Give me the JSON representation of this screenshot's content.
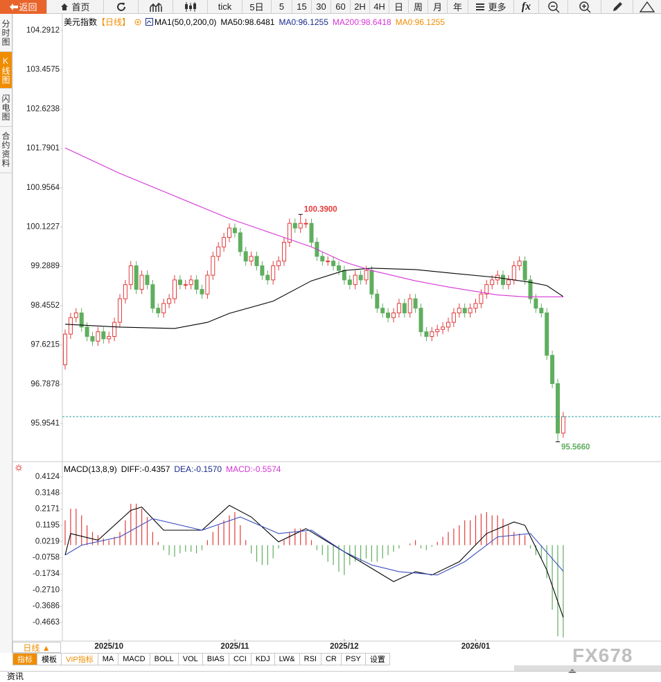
{
  "toolbar": {
    "back": "返回",
    "home": "首页",
    "buttons": [
      "tick",
      "5日",
      "5",
      "15",
      "30",
      "60",
      "2H",
      "4H",
      "日",
      "周",
      "月",
      "年"
    ],
    "more": "更多",
    "fx": "fx"
  },
  "side_tabs": [
    "分时图",
    "K线图",
    "闪电图",
    "合约资料"
  ],
  "chart_data": [
    {
      "type": "candlestick",
      "title": "美元指数",
      "period": "【日线】",
      "indicator": "MA1(50,0,200,0)",
      "legend": [
        {
          "text": "MA50:98.6481",
          "color": "#000000"
        },
        {
          "text": "MA0:96.1255",
          "color": "#1a2a8a"
        },
        {
          "text": "MA200:98.6418",
          "color": "#d633d6"
        },
        {
          "text": "MA0:96.1255",
          "color": "#f08c00"
        }
      ],
      "up_color": "#e23a3a",
      "down_color": "#5fae5f",
      "last_price_color": "#2aa1a1",
      "open": [
        97.2,
        97.85,
        98.2,
        98.3,
        98.0,
        97.8,
        97.7,
        97.9,
        97.75,
        97.8,
        98.1,
        98.6,
        98.9,
        99.3,
        98.8,
        99.1,
        98.9,
        98.4,
        98.3,
        98.5,
        98.6,
        99.0,
        98.9,
        98.9,
        99.0,
        98.8,
        98.7,
        99.1,
        99.5,
        99.7,
        99.9,
        100.1,
        100.0,
        99.6,
        99.4,
        99.5,
        99.3,
        99.1,
        99.0,
        99.3,
        99.4,
        99.8,
        100.2,
        100.1,
        100.2,
        100.2,
        99.8,
        99.5,
        99.4,
        99.4,
        99.3,
        99.2,
        99.0,
        98.9,
        99.1,
        99.0,
        99.2,
        98.7,
        98.4,
        98.3,
        98.2,
        98.3,
        98.5,
        98.3,
        98.6,
        98.4,
        97.9,
        97.8,
        97.9,
        97.95,
        98.0,
        98.1,
        98.3,
        98.4,
        98.3,
        98.4,
        98.5,
        98.7,
        98.9,
        99.0,
        99.1,
        98.9,
        99.0,
        99.3,
        99.4,
        99.0,
        98.6,
        98.4,
        98.3,
        97.4,
        96.8,
        95.75
      ],
      "high": [
        97.95,
        98.3,
        98.4,
        98.4,
        98.1,
        97.9,
        98.0,
        98.0,
        97.9,
        98.2,
        98.7,
        99.0,
        99.4,
        99.4,
        99.2,
        99.2,
        99.0,
        98.5,
        98.6,
        98.7,
        99.1,
        99.1,
        99.0,
        99.1,
        99.1,
        98.9,
        99.2,
        99.6,
        99.8,
        100.0,
        100.2,
        100.2,
        100.1,
        99.7,
        99.6,
        99.6,
        99.4,
        99.2,
        99.4,
        99.5,
        99.9,
        100.3,
        100.3,
        100.39,
        100.3,
        100.3,
        99.9,
        99.6,
        99.5,
        99.5,
        99.4,
        99.3,
        99.1,
        99.2,
        99.2,
        99.3,
        99.3,
        98.8,
        98.5,
        98.4,
        98.4,
        98.6,
        98.6,
        98.7,
        98.7,
        98.5,
        98.0,
        98.0,
        98.05,
        98.1,
        98.2,
        98.4,
        98.5,
        98.5,
        98.5,
        98.6,
        98.8,
        99.0,
        99.1,
        99.2,
        99.2,
        99.1,
        99.4,
        99.5,
        99.5,
        99.1,
        98.7,
        98.5,
        98.4,
        97.5,
        96.9,
        96.2
      ],
      "low": [
        97.1,
        97.75,
        98.1,
        97.9,
        97.7,
        97.6,
        97.6,
        97.65,
        97.65,
        97.7,
        98.0,
        98.5,
        98.8,
        98.7,
        98.7,
        98.8,
        98.3,
        98.2,
        98.2,
        98.4,
        98.5,
        98.8,
        98.8,
        98.8,
        98.7,
        98.6,
        98.6,
        99.0,
        99.4,
        99.6,
        99.8,
        99.9,
        99.5,
        99.3,
        99.3,
        99.2,
        99.0,
        98.9,
        98.9,
        99.2,
        99.3,
        99.7,
        100.0,
        100.0,
        100.1,
        99.7,
        99.4,
        99.3,
        99.3,
        99.2,
        99.1,
        98.9,
        98.8,
        98.8,
        98.9,
        98.9,
        98.6,
        98.3,
        98.2,
        98.1,
        98.1,
        98.2,
        98.2,
        98.2,
        98.3,
        97.8,
        97.7,
        97.7,
        97.8,
        97.85,
        97.9,
        98.0,
        98.2,
        98.2,
        98.2,
        98.3,
        98.4,
        98.6,
        98.8,
        98.9,
        98.8,
        98.8,
        98.9,
        99.2,
        98.9,
        98.5,
        98.3,
        98.2,
        97.3,
        96.7,
        95.566,
        95.65
      ],
      "close": [
        97.85,
        98.2,
        98.3,
        98.0,
        97.8,
        97.7,
        97.9,
        97.75,
        97.8,
        98.1,
        98.6,
        98.9,
        99.3,
        98.8,
        99.1,
        98.9,
        98.4,
        98.3,
        98.5,
        98.6,
        99.0,
        98.9,
        98.9,
        99.0,
        98.8,
        98.7,
        99.1,
        99.5,
        99.7,
        99.9,
        100.1,
        100.0,
        99.6,
        99.4,
        99.5,
        99.3,
        99.1,
        99.0,
        99.3,
        99.4,
        99.8,
        100.2,
        100.1,
        100.2,
        100.2,
        99.8,
        99.5,
        99.4,
        99.4,
        99.3,
        99.2,
        99.0,
        98.9,
        99.1,
        99.0,
        99.2,
        98.7,
        98.4,
        98.3,
        98.2,
        98.3,
        98.5,
        98.3,
        98.6,
        98.4,
        97.9,
        97.8,
        97.9,
        97.95,
        98.0,
        98.1,
        98.3,
        98.4,
        98.3,
        98.4,
        98.5,
        98.7,
        98.9,
        99.0,
        99.1,
        98.9,
        99.0,
        99.3,
        99.4,
        99.0,
        98.6,
        98.4,
        98.3,
        97.4,
        96.8,
        95.75,
        96.1
      ],
      "lines": [
        {
          "color": "#000000",
          "x": [
            0,
            10,
            20,
            26,
            30,
            38,
            45,
            51,
            56,
            64,
            70,
            79,
            85,
            88,
            91
          ],
          "values": [
            98.06,
            98.0,
            97.97,
            98.1,
            98.29,
            98.55,
            98.98,
            99.2,
            99.25,
            99.22,
            99.15,
            99.05,
            98.95,
            98.88,
            98.6481
          ]
        },
        {
          "color": "#d633d6",
          "x": [
            0,
            10,
            20,
            30,
            39,
            45,
            51,
            56,
            64,
            70,
            79,
            84,
            91
          ],
          "values": [
            101.8,
            101.26,
            100.78,
            100.3,
            99.94,
            99.7,
            99.38,
            99.2,
            98.98,
            98.85,
            98.68,
            98.64,
            98.6418
          ]
        }
      ],
      "annotations": [
        {
          "value": 100.39,
          "label": "100.3900"
        },
        {
          "value": 95.566,
          "label": "95.5660"
        }
      ],
      "ylim": [
        95.1602,
        104.6147
      ],
      "yticks": [
        104.2912,
        103.4575,
        102.6238,
        101.7901,
        100.9564,
        100.1227,
        99.2889,
        98.4552,
        97.6215,
        96.7878,
        95.9541
      ]
    },
    {
      "type": "macd",
      "title": "MACD(13,8,9)",
      "legend": [
        {
          "text": "DIFF:-0.4357",
          "color": "#000000"
        },
        {
          "text": "DEA:-0.1570",
          "color": "#1a2a8a"
        },
        {
          "text": "MACD:-0.5574",
          "color": "#d633d6"
        }
      ],
      "up_color": "#e23a3a",
      "down_color": "#5fae5f",
      "bars": [
        0.15,
        0.22,
        0.22,
        0.18,
        0.12,
        0.08,
        0.06,
        0.04,
        0.03,
        0.05,
        0.08,
        0.15,
        0.25,
        0.25,
        0.22,
        0.17,
        0.08,
        0.02,
        -0.03,
        -0.06,
        -0.07,
        -0.05,
        -0.04,
        -0.04,
        -0.05,
        -0.03,
        0.03,
        0.08,
        0.12,
        0.15,
        0.18,
        0.2,
        0.12,
        0.03,
        -0.05,
        -0.1,
        -0.12,
        -0.12,
        -0.08,
        -0.02,
        0.03,
        0.08,
        0.1,
        0.1,
        0.08,
        0.03,
        -0.03,
        -0.06,
        -0.1,
        -0.12,
        -0.16,
        -0.18,
        -0.12,
        -0.1,
        -0.1,
        -0.08,
        -0.1,
        -0.1,
        -0.08,
        -0.06,
        -0.04,
        -0.02,
        0.0,
        0.01,
        0.03,
        -0.02,
        -0.03,
        -0.01,
        0.02,
        0.05,
        0.08,
        0.1,
        0.12,
        0.15,
        0.15,
        0.18,
        0.19,
        0.2,
        0.18,
        0.18,
        0.16,
        0.12,
        0.08,
        0.07,
        0.06,
        -0.02,
        -0.06,
        -0.08,
        -0.2,
        -0.39,
        -0.55,
        -0.5574
      ],
      "lines": [
        {
          "color": "#000000",
          "x": [
            0,
            1,
            6,
            12,
            14,
            18,
            25,
            30,
            34,
            39,
            44,
            49,
            54,
            60,
            64,
            67,
            72,
            77,
            82,
            84,
            88,
            91
          ],
          "values": [
            -0.06,
            0.07,
            0.03,
            0.21,
            0.23,
            0.09,
            0.09,
            0.24,
            0.17,
            0.02,
            0.1,
            0.0,
            -0.1,
            -0.22,
            -0.16,
            -0.18,
            -0.1,
            0.07,
            0.14,
            0.12,
            -0.15,
            -0.4357
          ]
        },
        {
          "color": "#3a4fc0",
          "x": [
            0,
            3,
            10,
            16,
            25,
            32,
            39,
            45,
            51,
            56,
            61,
            68,
            73,
            79,
            85,
            91
          ],
          "values": [
            -0.06,
            0.0,
            0.05,
            0.16,
            0.09,
            0.17,
            0.07,
            0.09,
            -0.04,
            -0.12,
            -0.16,
            -0.18,
            -0.1,
            0.05,
            0.07,
            -0.157
          ]
        }
      ],
      "ylim": [
        -0.5667,
        0.4793
      ],
      "yticks": [
        0.4124,
        0.3148,
        0.2171,
        0.1195,
        0.0219,
        -0.0758,
        -0.1734,
        {
          "value": -0.271,
          "label": "-0.2710"
        },
        -0.3686,
        -0.4663
      ],
      "xticks": [
        {
          "value": 8,
          "label": "2025/10"
        },
        {
          "value": 31,
          "label": "2025/11"
        },
        {
          "value": 51,
          "label": "2025/12"
        },
        {
          "value": 75,
          "label": "2026/01"
        }
      ]
    }
  ],
  "bottom": {
    "period_button": "日线 ▲",
    "tabs": [
      "指标",
      "模板",
      "VIP指标",
      "MA",
      "MACD",
      "BOLL",
      "VOL",
      "BIAS",
      "CCI",
      "KDJ",
      "LW&",
      "RSI",
      "CR",
      "PSY",
      "设置"
    ]
  },
  "footer": "资讯",
  "watermark": "FX678"
}
